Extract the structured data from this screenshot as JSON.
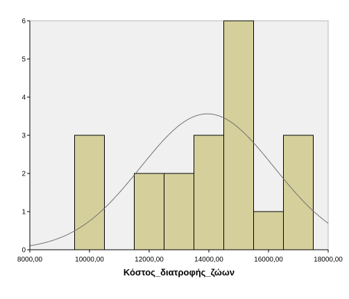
{
  "chart_data": {
    "type": "bar",
    "subtype": "histogram-with-normal-curve",
    "title": "",
    "xlabel": "Κόστος_διατροφής_ζώων",
    "ylabel": "",
    "xlim": [
      8000,
      18000
    ],
    "ylim": [
      0,
      6
    ],
    "x_ticks": [
      8000,
      10000,
      12000,
      14000,
      16000,
      18000
    ],
    "x_tick_labels": [
      "8000,00",
      "10000,00",
      "12000,00",
      "14000,00",
      "16000,00",
      "18000,00"
    ],
    "y_ticks": [
      0,
      1,
      2,
      3,
      4,
      5,
      6
    ],
    "y_tick_labels": [
      "0",
      "1",
      "2",
      "3",
      "4",
      "5",
      "6"
    ],
    "bins": [
      {
        "start": 9500,
        "end": 10500,
        "count": 3
      },
      {
        "start": 11500,
        "end": 12500,
        "count": 2
      },
      {
        "start": 12500,
        "end": 13500,
        "count": 2
      },
      {
        "start": 13500,
        "end": 14500,
        "count": 3
      },
      {
        "start": 14500,
        "end": 15500,
        "count": 6
      },
      {
        "start": 15500,
        "end": 16500,
        "count": 1
      },
      {
        "start": 16500,
        "end": 17500,
        "count": 3
      }
    ],
    "normal_curve": {
      "mean": 13950,
      "sd": 2240,
      "n": 20,
      "bin_width": 1000
    },
    "grid": false,
    "legend": "none",
    "colors": {
      "plot_background": "#f0f0f0",
      "bar_fill": "#d5d09b",
      "bar_stroke": "#000000",
      "curve": "#707070",
      "axis": "#000000"
    }
  }
}
